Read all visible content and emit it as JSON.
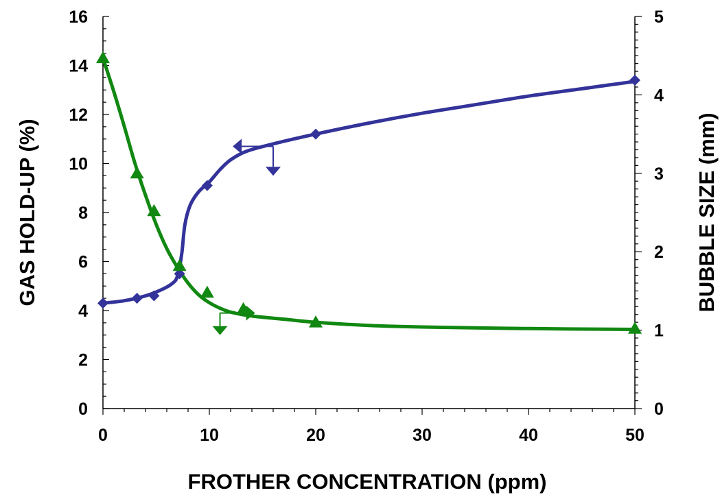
{
  "chart_data": {
    "type": "line",
    "xlabel": "FROTHER CONCENTRATION (ppm)",
    "ylabel_left": "GAS HOLD-UP (%)",
    "ylabel_right": "BUBBLE SIZE (mm)",
    "xlim": [
      0,
      50
    ],
    "ylim_left": [
      0,
      16
    ],
    "ylim_right": [
      0,
      5
    ],
    "x_ticks": [
      0,
      10,
      20,
      30,
      40,
      50
    ],
    "y_left_ticks": [
      0,
      2,
      4,
      6,
      8,
      10,
      12,
      14,
      16
    ],
    "y_right_ticks": [
      0,
      1,
      2,
      3,
      4,
      5
    ],
    "grid": false,
    "legend": "none",
    "series": [
      {
        "axis": "left",
        "marker": "diamond",
        "color": "#33339a",
        "points": [
          [
            0,
            4.3
          ],
          [
            3.2,
            4.5
          ],
          [
            4.8,
            4.6
          ],
          [
            7.2,
            5.5
          ],
          [
            9.8,
            9.1
          ],
          [
            20,
            11.2
          ],
          [
            50,
            13.4
          ]
        ],
        "curve": [
          [
            0,
            4.3
          ],
          [
            2,
            4.4
          ],
          [
            4,
            4.6
          ],
          [
            5.5,
            4.85
          ],
          [
            6.5,
            5.1
          ],
          [
            7,
            5.4
          ],
          [
            7.4,
            6.3
          ],
          [
            7.7,
            7.5
          ],
          [
            8.2,
            8.3
          ],
          [
            9,
            8.85
          ],
          [
            10,
            9.25
          ],
          [
            11,
            9.75
          ],
          [
            12,
            10.15
          ],
          [
            13.5,
            10.5
          ],
          [
            16,
            10.8
          ],
          [
            20,
            11.2
          ],
          [
            25,
            11.65
          ],
          [
            30,
            12.05
          ],
          [
            35,
            12.4
          ],
          [
            40,
            12.75
          ],
          [
            45,
            13.05
          ],
          [
            50,
            13.35
          ]
        ]
      },
      {
        "axis": "right",
        "marker": "triangle",
        "color": "#118811",
        "points": [
          [
            0,
            4.47
          ],
          [
            3.2,
            3.0
          ],
          [
            4.8,
            2.52
          ],
          [
            7.2,
            1.82
          ],
          [
            9.8,
            1.48
          ],
          [
            13.2,
            1.27
          ],
          [
            20,
            1.1
          ],
          [
            50,
            1.02
          ]
        ],
        "curve": [
          [
            0,
            4.47
          ],
          [
            1,
            4.05
          ],
          [
            2,
            3.6
          ],
          [
            3,
            3.13
          ],
          [
            4,
            2.72
          ],
          [
            5,
            2.35
          ],
          [
            6,
            2.04
          ],
          [
            7,
            1.8
          ],
          [
            8,
            1.6
          ],
          [
            9,
            1.45
          ],
          [
            10,
            1.35
          ],
          [
            11,
            1.28
          ],
          [
            12,
            1.23
          ],
          [
            14,
            1.18
          ],
          [
            17,
            1.14
          ],
          [
            20,
            1.1
          ],
          [
            25,
            1.06
          ],
          [
            30,
            1.04
          ],
          [
            40,
            1.02
          ],
          [
            50,
            1.01
          ]
        ]
      }
    ],
    "annotations": [
      {
        "type": "arrow",
        "direction": "left",
        "color": "#33339a",
        "from": [
          16,
          10.7
        ],
        "to": [
          12.2,
          10.7
        ]
      },
      {
        "type": "arrow",
        "direction": "down",
        "color": "#33339a",
        "from": [
          16,
          10.7
        ],
        "to": [
          16,
          9.5
        ]
      },
      {
        "type": "arrow",
        "direction": "down",
        "color": "#118811",
        "from": [
          11,
          3.9
        ],
        "to": [
          11,
          3.0
        ]
      },
      {
        "type": "arrow",
        "direction": "right",
        "color": "#118811",
        "from": [
          11,
          3.9
        ],
        "to": [
          14.3,
          3.9
        ]
      }
    ]
  }
}
